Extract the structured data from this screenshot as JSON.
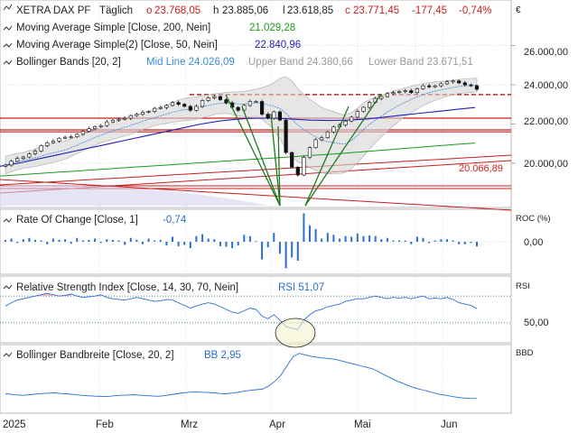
{
  "header": {
    "symbol": "XETRA DAX PF",
    "interval": "Täglich",
    "open_label": "o",
    "open": "23.768,05",
    "high_label": "h",
    "high": "23.885,06",
    "low_label": "l",
    "low": "23.618,85",
    "close_label": "c",
    "close": "23.771,45",
    "change": "-177,45",
    "change_pct": "-0,74%",
    "currency": "€"
  },
  "legend": {
    "sma200": {
      "label": "Moving Average Simple [Close, 200, Nein]",
      "value": "21.029,28",
      "color": "#1a9a1a"
    },
    "sma50": {
      "label": "Moving Average Simple(2) [Close, 50, Nein]",
      "value": "22.840,96",
      "color": "#1f1fb8"
    },
    "bb": {
      "label": "Bollinger Bands [20, 2]",
      "mid": "Mid Line 24.026,09",
      "upper": "Upper Band 24.380,66",
      "lower": "Lower Band 23.671,51",
      "mid_color": "#3a8ad6",
      "band_color": "#9a9a9a"
    }
  },
  "price_axis": {
    "ticks": [
      "26.000,00",
      "24.000,00",
      "22.000,00",
      "20.000,00"
    ],
    "marker": "20.066,89",
    "marker_color": "#d42020"
  },
  "roc": {
    "title": "Rate Of Change [Close, 1]",
    "value": "-0,74",
    "axis_label": "ROC (%)",
    "tick": "0,00",
    "color": "#2a6fd0"
  },
  "rsi": {
    "title": "Relative Strength Index [Close, 14, 30, 70, Nein]",
    "value": "RSI 51,07",
    "axis_label": "RSI",
    "tick": "50,00",
    "color": "#2a6fd0"
  },
  "bbw": {
    "title": "Bollinger Bandbreite [Close, 20, 2]",
    "value": "BB 2,95",
    "axis_label": "BBD",
    "color": "#2a6fd0"
  },
  "time_axis": {
    "labels": [
      "2025",
      "Feb",
      "Mrz",
      "Apr",
      "Mai",
      "Jun"
    ]
  },
  "chart_data": {
    "type": "line",
    "title": "XETRA DAX PF",
    "x_labels": [
      "2025",
      "Feb",
      "Mrz",
      "Apr",
      "Mai",
      "Jun"
    ],
    "ylim": [
      18700,
      26900
    ],
    "price_close": [
      19909,
      20100,
      20250,
      20320,
      20480,
      20620,
      20900,
      21050,
      21130,
      21280,
      21330,
      21350,
      21480,
      21630,
      21760,
      21870,
      21920,
      22110,
      22200,
      22250,
      22290,
      22430,
      22500,
      22600,
      22640,
      22800,
      22840,
      22950,
      23100,
      23010,
      22900,
      22700,
      22900,
      23200,
      23330,
      23400,
      23240,
      23080,
      22850,
      22700,
      22950,
      23150,
      23150,
      22500,
      22300,
      22620,
      22200,
      20550,
      19800,
      19400,
      20300,
      20800,
      21200,
      21300,
      21600,
      21850,
      21950,
      22150,
      22350,
      22650,
      22850,
      23100,
      23300,
      23400,
      23550,
      23600,
      23650,
      23700,
      23600,
      23800,
      23950,
      23900,
      23950,
      24050,
      24150,
      24200,
      24100,
      24000,
      23950,
      23771
    ],
    "sma200": [
      19350,
      19400,
      19450,
      19500,
      19550,
      19600,
      19650,
      19700,
      19750,
      19800,
      19850,
      19900,
      19950,
      20000,
      20050,
      20100,
      20150,
      20200,
      20250,
      20300,
      20350,
      20400,
      20450,
      20500,
      20560,
      20620,
      20680,
      20740,
      20800,
      20860,
      20920,
      20980,
      21029
    ],
    "sma50": [
      19850,
      20000,
      20200,
      20400,
      20600,
      20800,
      21000,
      21200,
      21400,
      21600,
      21800,
      22000,
      22150,
      22250,
      22300,
      22300,
      22250,
      22200,
      22180,
      22200,
      22250,
      22350,
      22450,
      22550,
      22650,
      22750,
      22841
    ],
    "bollinger": {
      "mid": "24.026,09",
      "upper": "24.380,66",
      "lower": "23.671,51"
    },
    "horizontal_levels": [
      23500,
      22300,
      21700,
      21600
    ],
    "rsi_levels": [
      30,
      70
    ],
    "roc": [
      0.3,
      0.5,
      -0.2,
      0.4,
      0.6,
      0.3,
      0.2,
      -0.4,
      0.5,
      0.3,
      0.4,
      -0.3,
      0.6,
      0.2,
      0.3,
      0.5,
      -0.2,
      0.4,
      0.3,
      0.2,
      -0.5,
      0.6,
      0.3,
      -0.4,
      0.5,
      0.2,
      0.3,
      -0.6,
      0.8,
      -0.7,
      -0.5,
      -1.0,
      0.9,
      1.2,
      0.5,
      0.4,
      -0.7,
      -0.8,
      -1.0,
      -0.6,
      1.1,
      0.9,
      0.1,
      -2.8,
      -0.9,
      1.4,
      -1.9,
      -4.2,
      -2.5,
      -3.0,
      4.5,
      2.6,
      2.0,
      0.5,
      1.4,
      1.1,
      0.5,
      0.9,
      0.8,
      1.3,
      0.9,
      1.0,
      0.9,
      0.4,
      0.6,
      0.2,
      0.2,
      0.2,
      -0.4,
      0.8,
      0.6,
      -0.2,
      0.2,
      0.4,
      0.4,
      0.2,
      -0.4,
      -0.4,
      -0.2,
      -0.74
    ],
    "rsi": [
      55,
      60,
      64,
      66,
      68,
      70,
      72,
      74,
      72,
      70,
      71,
      73,
      70,
      68,
      69,
      70,
      72,
      68,
      66,
      65,
      64,
      66,
      68,
      66,
      64,
      62,
      63,
      65,
      64,
      60,
      56,
      52,
      55,
      58,
      60,
      58,
      54,
      50,
      46,
      44,
      48,
      52,
      50,
      40,
      36,
      42,
      34,
      24,
      22,
      20,
      34,
      42,
      48,
      50,
      54,
      56,
      58,
      62,
      64,
      66,
      66,
      68,
      70,
      68,
      66,
      68,
      67,
      68,
      66,
      68,
      70,
      66,
      67,
      66,
      68,
      65,
      60,
      58,
      56,
      51
    ],
    "bbw": [
      4.5,
      4.3,
      4.1,
      4.0,
      4.2,
      4.4,
      4.6,
      4.7,
      4.8,
      4.6,
      4.5,
      4.3,
      4.1,
      3.9,
      3.8,
      3.7,
      3.6,
      3.7,
      3.9,
      4.0,
      4.1,
      4.2,
      4.0,
      3.9,
      3.8,
      3.7,
      3.9,
      4.2,
      4.5,
      4.8,
      5.0,
      5.1,
      5.0,
      4.9,
      4.8,
      4.6,
      4.5,
      4.7,
      5.0,
      5.3,
      5.6,
      5.8,
      6.0,
      7.0,
      8.5,
      10.5,
      13.5,
      16.5,
      17.5,
      17.0,
      16.5,
      16.2,
      16.0,
      15.8,
      15.5,
      15.0,
      14.5,
      14.0,
      13.5,
      13.0,
      12.5,
      11.5,
      10.5,
      9.5,
      8.5,
      7.8,
      7.0,
      6.3,
      5.8,
      5.3,
      4.8,
      4.3,
      4.0,
      3.6,
      3.3,
      3.1,
      3.0,
      2.95
    ]
  }
}
